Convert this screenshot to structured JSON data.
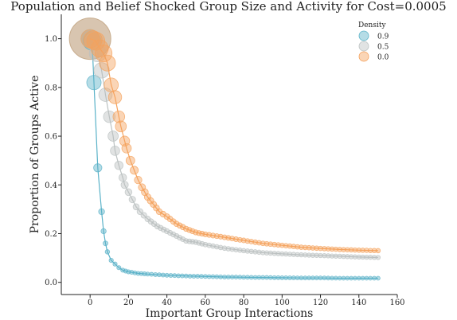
{
  "chart_data": {
    "type": "scatter",
    "title": "Population and Belief Shocked Group Size and Activity for Cost=0.0005",
    "xlabel": "Important Group Interactions",
    "ylabel": "Proportion of Groups Active",
    "xlim": [
      -15,
      160
    ],
    "ylim": [
      -0.05,
      1.1
    ],
    "xticks": [
      0,
      20,
      40,
      60,
      80,
      100,
      120,
      140,
      160
    ],
    "yticks": [
      0.0,
      0.2,
      0.4,
      0.6,
      0.8,
      1.0
    ],
    "xtick_labels": [
      "0",
      "20",
      "40",
      "60",
      "80",
      "100",
      "120",
      "140",
      "160"
    ],
    "ytick_labels": [
      "0.0",
      "0.2",
      "0.4",
      "0.6",
      "0.8",
      "1.0"
    ],
    "grid": false,
    "legend": {
      "title": "Density",
      "placement": "top-right"
    },
    "shock_point": {
      "x": 0,
      "y": 1.0,
      "color": "#c8ad8e"
    },
    "series": [
      {
        "name": "0.9",
        "color": "#5ab2c8",
        "points": [
          [
            0,
            1.0
          ],
          [
            1,
            0.99
          ],
          [
            2,
            0.82
          ],
          [
            4,
            0.47
          ],
          [
            6,
            0.29
          ],
          [
            7,
            0.21
          ],
          [
            8,
            0.16
          ],
          [
            9,
            0.125
          ],
          [
            11,
            0.09
          ],
          [
            13,
            0.075
          ],
          [
            15,
            0.06
          ],
          [
            17,
            0.05
          ],
          [
            20,
            0.043
          ],
          [
            25,
            0.037
          ],
          [
            30,
            0.034
          ],
          [
            40,
            0.029
          ],
          [
            50,
            0.026
          ],
          [
            60,
            0.024
          ],
          [
            70,
            0.022
          ],
          [
            80,
            0.021
          ],
          [
            90,
            0.02
          ],
          [
            100,
            0.019
          ],
          [
            110,
            0.018
          ],
          [
            120,
            0.018
          ],
          [
            130,
            0.017
          ],
          [
            140,
            0.017
          ],
          [
            150,
            0.017
          ]
        ]
      },
      {
        "name": "0.5",
        "color": "#bcc2c2",
        "points": [
          [
            0,
            1.0
          ],
          [
            2,
            0.99
          ],
          [
            4,
            0.94
          ],
          [
            6,
            0.87
          ],
          [
            8,
            0.77
          ],
          [
            10,
            0.68
          ],
          [
            12,
            0.6
          ],
          [
            13,
            0.54
          ],
          [
            15,
            0.48
          ],
          [
            17,
            0.43
          ],
          [
            18,
            0.4
          ],
          [
            20,
            0.37
          ],
          [
            22,
            0.34
          ],
          [
            24,
            0.31
          ],
          [
            26,
            0.29
          ],
          [
            30,
            0.26
          ],
          [
            35,
            0.23
          ],
          [
            40,
            0.21
          ],
          [
            45,
            0.19
          ],
          [
            50,
            0.17
          ],
          [
            55,
            0.165
          ],
          [
            60,
            0.155
          ],
          [
            70,
            0.14
          ],
          [
            80,
            0.13
          ],
          [
            90,
            0.122
          ],
          [
            100,
            0.117
          ],
          [
            110,
            0.113
          ],
          [
            120,
            0.11
          ],
          [
            130,
            0.107
          ],
          [
            140,
            0.104
          ],
          [
            150,
            0.102
          ]
        ]
      },
      {
        "name": "0.0",
        "color": "#f5a25d",
        "points": [
          [
            0,
            1.0
          ],
          [
            3,
            0.99
          ],
          [
            5,
            0.96
          ],
          [
            7,
            0.94
          ],
          [
            9,
            0.9
          ],
          [
            11,
            0.81
          ],
          [
            13,
            0.76
          ],
          [
            15,
            0.68
          ],
          [
            16,
            0.64
          ],
          [
            18,
            0.58
          ],
          [
            19,
            0.55
          ],
          [
            21,
            0.5
          ],
          [
            23,
            0.46
          ],
          [
            25,
            0.42
          ],
          [
            27,
            0.39
          ],
          [
            30,
            0.35
          ],
          [
            33,
            0.32
          ],
          [
            36,
            0.29
          ],
          [
            40,
            0.27
          ],
          [
            45,
            0.24
          ],
          [
            50,
            0.22
          ],
          [
            55,
            0.205
          ],
          [
            60,
            0.197
          ],
          [
            70,
            0.185
          ],
          [
            80,
            0.172
          ],
          [
            90,
            0.16
          ],
          [
            100,
            0.152
          ],
          [
            110,
            0.144
          ],
          [
            120,
            0.139
          ],
          [
            130,
            0.135
          ],
          [
            140,
            0.132
          ],
          [
            150,
            0.13
          ]
        ]
      }
    ]
  }
}
